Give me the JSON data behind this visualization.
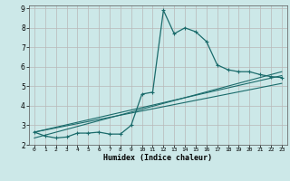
{
  "xlabel": "Humidex (Indice chaleur)",
  "ylabel": "",
  "bg_color": "#cce8e8",
  "grid_color": "#b8b8b8",
  "line_color": "#1a6b6b",
  "xlim": [
    -0.5,
    23.5
  ],
  "ylim": [
    2,
    9
  ],
  "xticks": [
    0,
    1,
    2,
    3,
    4,
    5,
    6,
    7,
    8,
    9,
    10,
    11,
    12,
    13,
    14,
    15,
    16,
    17,
    18,
    19,
    20,
    21,
    22,
    23
  ],
  "yticks": [
    2,
    3,
    4,
    5,
    6,
    7,
    8,
    9
  ],
  "series1_x": [
    0,
    1,
    2,
    3,
    4,
    5,
    6,
    7,
    8,
    9,
    10,
    11,
    12,
    13,
    14,
    15,
    16,
    17,
    18,
    19,
    20,
    21,
    22,
    23
  ],
  "series1_y": [
    2.65,
    2.45,
    2.35,
    2.4,
    2.6,
    2.6,
    2.65,
    2.55,
    2.55,
    3.0,
    4.6,
    4.7,
    8.9,
    7.7,
    8.0,
    7.8,
    7.3,
    6.1,
    5.85,
    5.75,
    5.75,
    5.6,
    5.5,
    5.45
  ],
  "series2_x": [
    0,
    23
  ],
  "series2_y": [
    2.65,
    5.55
  ],
  "series3_x": [
    0,
    23
  ],
  "series3_y": [
    2.65,
    5.15
  ],
  "series4_x": [
    0,
    23
  ],
  "series4_y": [
    2.35,
    5.75
  ]
}
